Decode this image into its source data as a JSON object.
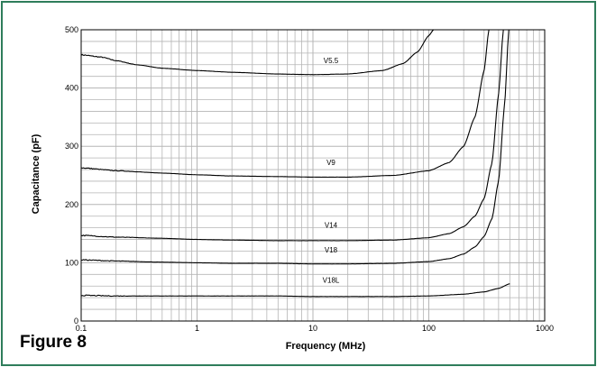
{
  "figure_label": "Figure 8",
  "chart_data": {
    "type": "line",
    "title": "",
    "xlabel": "Frequency (MHz)",
    "ylabel": "Capacitance (pF)",
    "xscale": "log",
    "xlim": [
      0.1,
      1000
    ],
    "ylim": [
      0,
      500
    ],
    "x_ticks": [
      0.1,
      1,
      10,
      100,
      1000
    ],
    "x_tick_labels": [
      "0.1",
      "1",
      "10",
      "100",
      "1000"
    ],
    "y_ticks": [
      0,
      100,
      200,
      300,
      400,
      500
    ],
    "y_tick_labels": [
      "0",
      "100",
      "200",
      "300",
      "400",
      "500"
    ],
    "grid": true,
    "legend": "none",
    "line_color": "#000000",
    "grid_color": "#b5b5b5",
    "series": [
      {
        "name": "V5.5",
        "x": [
          0.1,
          0.15,
          0.2,
          0.3,
          0.5,
          1,
          2,
          5,
          10,
          20,
          40,
          60,
          80,
          100,
          110
        ],
        "values": [
          457,
          453,
          447,
          440,
          434,
          430,
          427,
          424,
          423,
          424,
          430,
          442,
          462,
          490,
          500
        ]
      },
      {
        "name": "V9",
        "x": [
          0.1,
          0.2,
          0.5,
          1,
          2,
          5,
          10,
          20,
          50,
          100,
          150,
          200,
          250,
          300,
          330
        ],
        "values": [
          263,
          258,
          254,
          251,
          249,
          248,
          247,
          247,
          250,
          258,
          272,
          300,
          350,
          430,
          500
        ]
      },
      {
        "name": "V14",
        "x": [
          0.1,
          0.2,
          0.5,
          1,
          2,
          5,
          10,
          20,
          50,
          100,
          150,
          200,
          250,
          300,
          350,
          400,
          440
        ],
        "values": [
          147,
          144,
          142,
          140,
          139,
          138,
          138,
          138,
          139,
          143,
          150,
          162,
          180,
          210,
          270,
          390,
          500
        ]
      },
      {
        "name": "V18",
        "x": [
          0.1,
          0.2,
          0.5,
          1,
          2,
          5,
          10,
          20,
          50,
          100,
          150,
          200,
          250,
          300,
          350,
          400,
          450,
          490
        ],
        "values": [
          105,
          103,
          101,
          100,
          99,
          99,
          98,
          98,
          99,
          102,
          107,
          115,
          127,
          145,
          175,
          240,
          370,
          500
        ]
      },
      {
        "name": "V18L",
        "x": [
          0.1,
          0.2,
          0.5,
          1,
          2,
          5,
          10,
          20,
          50,
          100,
          200,
          300,
          400,
          500
        ],
        "values": [
          44,
          43,
          43,
          43,
          43,
          43,
          42,
          42,
          42,
          43,
          46,
          50,
          56,
          64
        ]
      }
    ],
    "series_labels": [
      {
        "text": "V5.5",
        "x": 10,
        "y": 443
      },
      {
        "text": "V9",
        "x": 10,
        "y": 268
      },
      {
        "text": "V14",
        "x": 10,
        "y": 160
      },
      {
        "text": "V18",
        "x": 10,
        "y": 118
      },
      {
        "text": "V18L",
        "x": 10,
        "y": 66
      }
    ]
  }
}
